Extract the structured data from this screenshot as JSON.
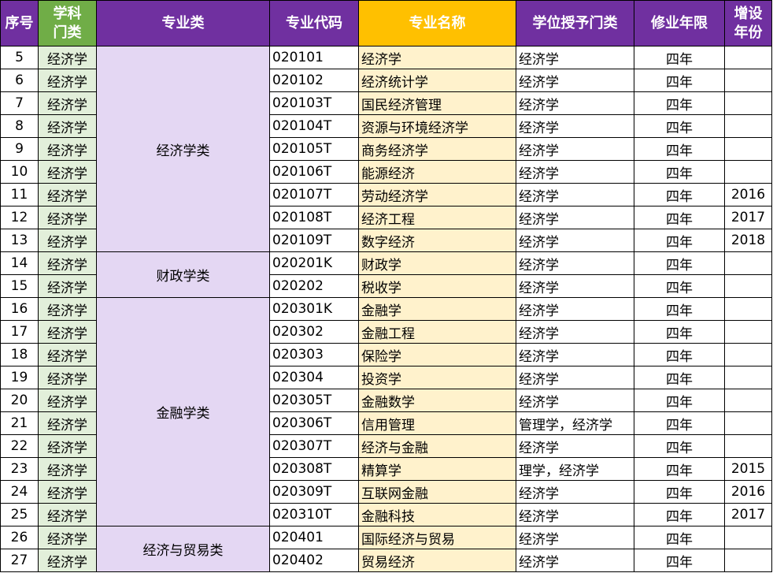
{
  "colors": {
    "header": "#7030A0",
    "header_category": "#70AD47",
    "header_name": "#FFC000",
    "category_cell": "#E2EFDA",
    "class_cell": "#E4D7F3",
    "name_cell": "#FFF2CC"
  },
  "headers": [
    "序号",
    "学科门类",
    "专业类",
    "专业代码",
    "专业名称",
    "学位授予门类",
    "修业年限",
    "增设年份"
  ],
  "groups": [
    {
      "name": "经济学类",
      "rows": [
        [
          "5",
          "经济学",
          "020101",
          "经济学",
          "经济学",
          "四年",
          ""
        ],
        [
          "6",
          "经济学",
          "020102",
          "经济统计学",
          "经济学",
          "四年",
          ""
        ],
        [
          "7",
          "经济学",
          "020103T",
          "国民经济管理",
          "经济学",
          "四年",
          ""
        ],
        [
          "8",
          "经济学",
          "020104T",
          "资源与环境经济学",
          "经济学",
          "四年",
          ""
        ],
        [
          "9",
          "经济学",
          "020105T",
          "商务经济学",
          "经济学",
          "四年",
          ""
        ],
        [
          "10",
          "经济学",
          "020106T",
          "能源经济",
          "经济学",
          "四年",
          ""
        ],
        [
          "11",
          "经济学",
          "020107T",
          "劳动经济学",
          "经济学",
          "四年",
          "2016"
        ],
        [
          "12",
          "经济学",
          "020108T",
          "经济工程",
          "经济学",
          "四年",
          "2017"
        ],
        [
          "13",
          "经济学",
          "020109T",
          "数字经济",
          "经济学",
          "四年",
          "2018"
        ]
      ]
    },
    {
      "name": "财政学类",
      "rows": [
        [
          "14",
          "经济学",
          "020201K",
          "财政学",
          "经济学",
          "四年",
          ""
        ],
        [
          "15",
          "经济学",
          "020202",
          "税收学",
          "经济学",
          "四年",
          ""
        ]
      ]
    },
    {
      "name": "金融学类",
      "rows": [
        [
          "16",
          "经济学",
          "020301K",
          "金融学",
          "经济学",
          "四年",
          ""
        ],
        [
          "17",
          "经济学",
          "020302",
          "金融工程",
          "经济学",
          "四年",
          ""
        ],
        [
          "18",
          "经济学",
          "020303",
          "保险学",
          "经济学",
          "四年",
          ""
        ],
        [
          "19",
          "经济学",
          "020304",
          "投资学",
          "经济学",
          "四年",
          ""
        ],
        [
          "20",
          "经济学",
          "020305T",
          "金融数学",
          "经济学",
          "四年",
          ""
        ],
        [
          "21",
          "经济学",
          "020306T",
          "信用管理",
          "管理学，经济学",
          "四年",
          ""
        ],
        [
          "22",
          "经济学",
          "020307T",
          "经济与金融",
          "经济学",
          "四年",
          ""
        ],
        [
          "23",
          "经济学",
          "020308T",
          "精算学",
          "理学，经济学",
          "四年",
          "2015"
        ],
        [
          "24",
          "经济学",
          "020309T",
          "互联网金融",
          "经济学",
          "四年",
          "2016"
        ],
        [
          "25",
          "经济学",
          "020310T",
          "金融科技",
          "经济学",
          "四年",
          "2017"
        ]
      ]
    },
    {
      "name": "经济与贸易类",
      "rows": [
        [
          "26",
          "经济学",
          "020401",
          "国际经济与贸易",
          "经济学",
          "四年",
          ""
        ],
        [
          "27",
          "经济学",
          "020402",
          "贸易经济",
          "经济学",
          "四年",
          ""
        ]
      ]
    }
  ]
}
